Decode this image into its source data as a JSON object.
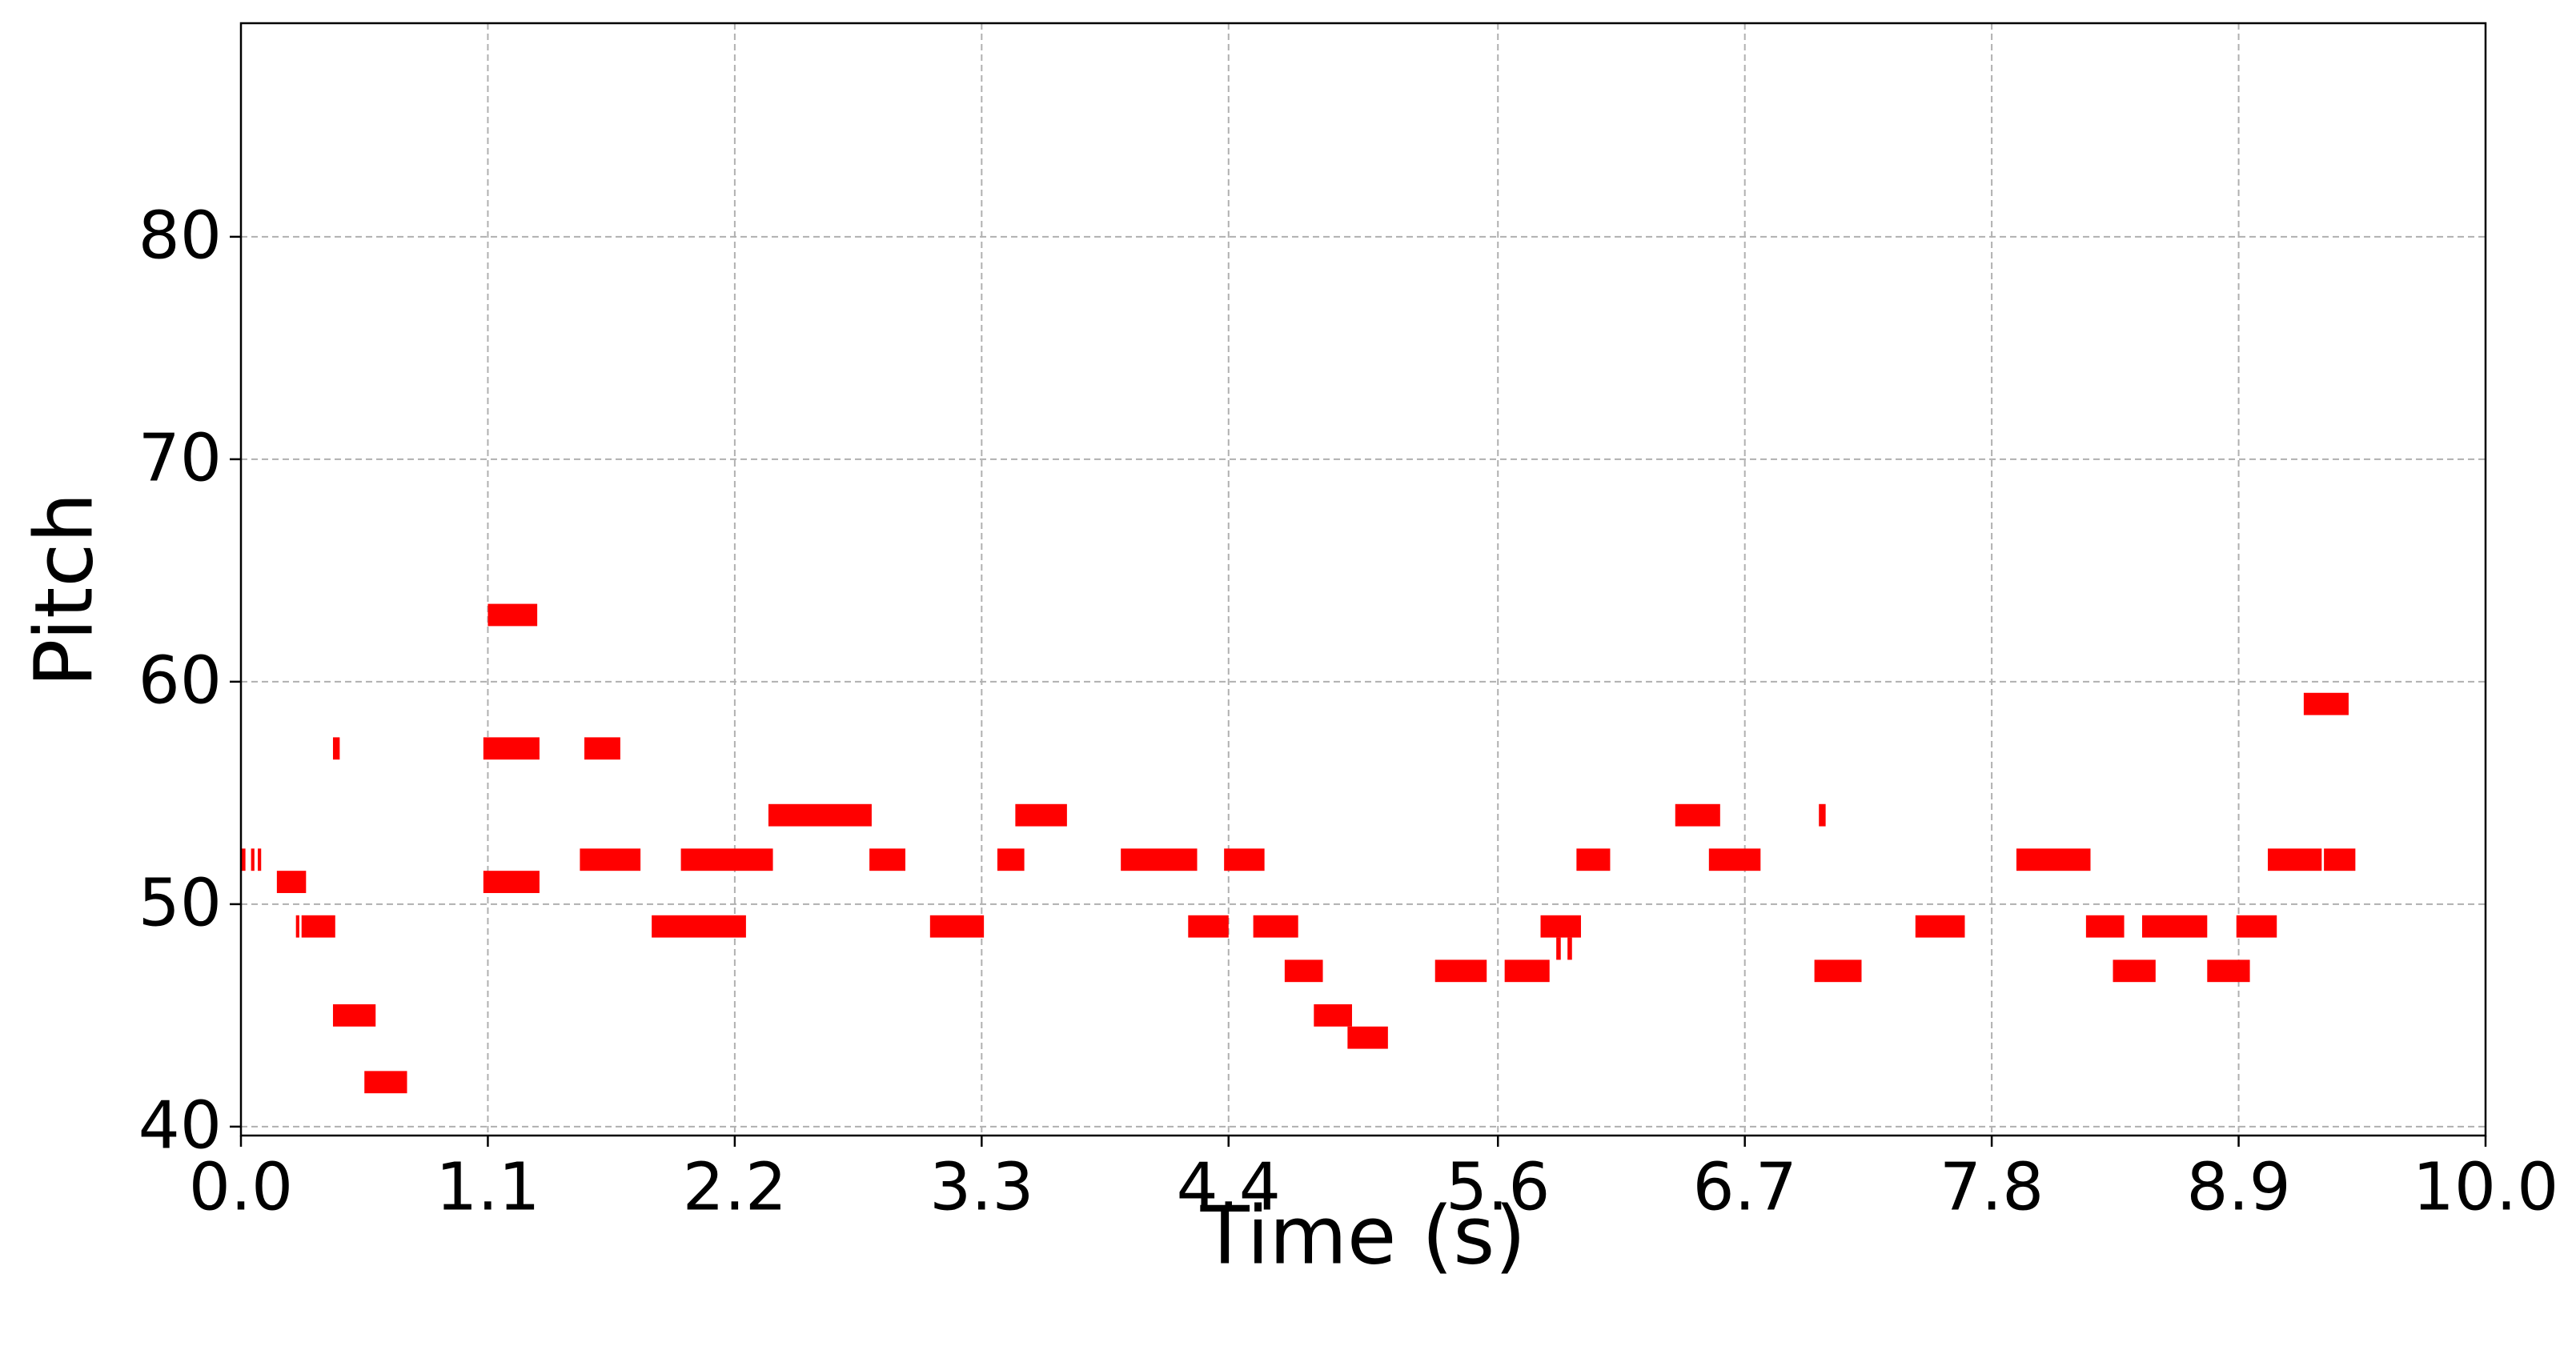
{
  "chart_data": {
    "type": "pianoroll",
    "xlabel": "Time (s)",
    "ylabel": "Pitch",
    "color": "#ff0000",
    "grid": true,
    "xlim": [
      0,
      10
    ],
    "ylim": [
      39.6,
      89.6
    ],
    "xticks": [
      {
        "value": 0,
        "label": "0.0"
      },
      1.1,
      2.2,
      3.3,
      4.4,
      5.6,
      6.7,
      7.8,
      8.9,
      {
        "value": 10,
        "label": "10.0"
      }
    ],
    "yticks": [
      40,
      50,
      60,
      70,
      80
    ],
    "notes": [
      {
        "start": 0.0,
        "end": 0.02,
        "pitch": 52
      },
      {
        "start": 0.045,
        "end": 0.06,
        "pitch": 52
      },
      {
        "start": 0.075,
        "end": 0.09,
        "pitch": 52
      },
      {
        "start": 0.16,
        "end": 0.29,
        "pitch": 51
      },
      {
        "start": 0.245,
        "end": 0.26,
        "pitch": 49
      },
      {
        "start": 0.27,
        "end": 0.42,
        "pitch": 49
      },
      {
        "start": 0.41,
        "end": 0.44,
        "pitch": 57
      },
      {
        "start": 0.41,
        "end": 0.6,
        "pitch": 45
      },
      {
        "start": 0.55,
        "end": 0.74,
        "pitch": 42
      },
      {
        "start": 1.1,
        "end": 1.32,
        "pitch": 63
      },
      {
        "start": 1.08,
        "end": 1.33,
        "pitch": 57
      },
      {
        "start": 1.08,
        "end": 1.33,
        "pitch": 51
      },
      {
        "start": 1.53,
        "end": 1.69,
        "pitch": 57
      },
      {
        "start": 1.51,
        "end": 1.78,
        "pitch": 52
      },
      {
        "start": 1.83,
        "end": 2.25,
        "pitch": 49
      },
      {
        "start": 1.96,
        "end": 2.37,
        "pitch": 52
      },
      {
        "start": 2.35,
        "end": 2.81,
        "pitch": 54
      },
      {
        "start": 2.8,
        "end": 2.96,
        "pitch": 52
      },
      {
        "start": 3.07,
        "end": 3.31,
        "pitch": 49
      },
      {
        "start": 3.37,
        "end": 3.49,
        "pitch": 52
      },
      {
        "start": 3.45,
        "end": 3.68,
        "pitch": 54
      },
      {
        "start": 3.92,
        "end": 4.26,
        "pitch": 52
      },
      {
        "start": 4.22,
        "end": 4.4,
        "pitch": 49
      },
      {
        "start": 4.38,
        "end": 4.56,
        "pitch": 52
      },
      {
        "start": 4.51,
        "end": 4.71,
        "pitch": 49
      },
      {
        "start": 4.65,
        "end": 4.82,
        "pitch": 47
      },
      {
        "start": 4.78,
        "end": 4.95,
        "pitch": 45
      },
      {
        "start": 4.93,
        "end": 5.11,
        "pitch": 44
      },
      {
        "start": 5.32,
        "end": 5.55,
        "pitch": 47
      },
      {
        "start": 5.63,
        "end": 5.83,
        "pitch": 47
      },
      {
        "start": 5.79,
        "end": 5.97,
        "pitch": 49
      },
      {
        "start": 5.86,
        "end": 5.88,
        "pitch": 48
      },
      {
        "start": 5.91,
        "end": 5.93,
        "pitch": 48
      },
      {
        "start": 5.95,
        "end": 6.1,
        "pitch": 52
      },
      {
        "start": 6.39,
        "end": 6.59,
        "pitch": 54
      },
      {
        "start": 6.54,
        "end": 6.77,
        "pitch": 52
      },
      {
        "start": 7.03,
        "end": 7.06,
        "pitch": 54
      },
      {
        "start": 7.01,
        "end": 7.22,
        "pitch": 47
      },
      {
        "start": 7.46,
        "end": 7.68,
        "pitch": 49
      },
      {
        "start": 7.91,
        "end": 8.24,
        "pitch": 52
      },
      {
        "start": 8.22,
        "end": 8.39,
        "pitch": 49
      },
      {
        "start": 8.34,
        "end": 8.53,
        "pitch": 47
      },
      {
        "start": 8.47,
        "end": 8.76,
        "pitch": 49
      },
      {
        "start": 8.76,
        "end": 8.95,
        "pitch": 47
      },
      {
        "start": 8.89,
        "end": 9.07,
        "pitch": 49
      },
      {
        "start": 9.03,
        "end": 9.26,
        "pitch": 52
      },
      {
        "start": 9.26,
        "end": 9.27,
        "pitch": 52
      },
      {
        "start": 9.28,
        "end": 9.42,
        "pitch": 52
      },
      {
        "start": 9.19,
        "end": 9.39,
        "pitch": 59
      }
    ]
  }
}
